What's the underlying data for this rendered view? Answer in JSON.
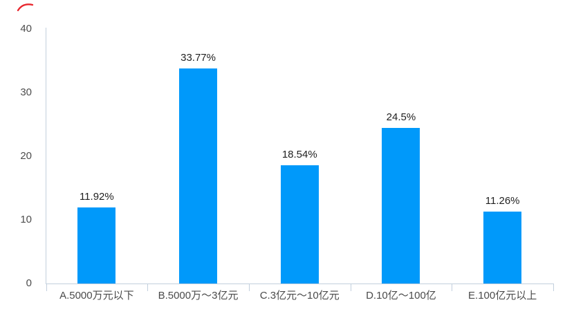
{
  "chart_data": {
    "type": "bar",
    "title": "",
    "xlabel": "",
    "ylabel": "",
    "categories": [
      "A.5000万元以下",
      "B.5000万～3亿元",
      "C.3亿元～10亿元",
      "D.10亿～100亿",
      "E.100亿元以上"
    ],
    "values": [
      11.92,
      33.77,
      18.54,
      24.5,
      11.26
    ],
    "value_labels": [
      "11.92%",
      "33.77%",
      "18.54%",
      "24.5%",
      "11.26%"
    ],
    "yticks": [
      0,
      10,
      20,
      30,
      40
    ],
    "ylim": [
      0,
      40
    ],
    "grid": false,
    "legend": null,
    "colors": {
      "bar": "#0099fa",
      "axis": "#c2cfdd",
      "value_label": "#1f1f1f",
      "tick_label": "#4a4a4a"
    }
  },
  "decorations": {
    "red_pen_mark_color": "#e8262d"
  }
}
